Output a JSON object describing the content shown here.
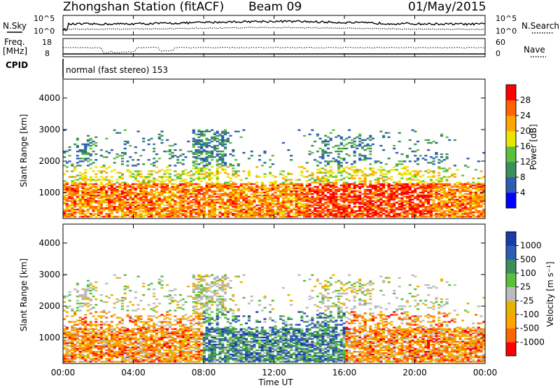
{
  "header": {
    "title": "Zhongshan Station (fitACF)",
    "beam": "Beam 09",
    "date": "01/May/2015",
    "cpid_label": "CPID",
    "cpid_text": "normal (fast stereo) 153"
  },
  "noise_panel": {
    "left_label": "N.Sky",
    "right_label": "N.Search",
    "left_ticks": [
      "10^5",
      "10^0"
    ],
    "right_ticks": [
      "10^5",
      "10^0"
    ]
  },
  "freq_panel": {
    "left_label_1": "Freq.",
    "left_label_2": "[MHz]",
    "right_label": "Nave",
    "left_ticks": [
      "18",
      "8"
    ],
    "right_ticks": [
      "60",
      "0"
    ]
  },
  "colors": {
    "power": [
      "#0000ff",
      "#2d5db4",
      "#3a8f5a",
      "#5cbf3c",
      "#e6e600",
      "#ffa500",
      "#ff6400",
      "#ff0000"
    ],
    "velocity": [
      "#ff0000",
      "#ff6400",
      "#ffa500",
      "#e6b400",
      "#bbbbbb",
      "#5cbf3c",
      "#3a8f5a",
      "#2d5db4",
      "#1a3ca8"
    ]
  },
  "chart_data": [
    {
      "type": "heatmap",
      "name": "Power",
      "ylabel": "Slant Range [km]",
      "ylim": [
        180,
        4600
      ],
      "yticks": [
        "1000",
        "2000",
        "3000",
        "4000"
      ],
      "xlim_hours": [
        0,
        24
      ],
      "colorbar_label": "Power [dB]",
      "colorbar_ticks": [
        "4",
        "8",
        "12",
        "16",
        "20",
        "24",
        "28"
      ],
      "colorbar_range": [
        0,
        32
      ]
    },
    {
      "type": "heatmap",
      "name": "Velocity",
      "ylabel": "Slant Range [km]",
      "ylim": [
        180,
        4600
      ],
      "yticks": [
        "1000",
        "2000",
        "3000",
        "4000"
      ],
      "xlim_hours": [
        0,
        24
      ],
      "xlabel": "Time UT",
      "xticks": [
        "00:00",
        "04:00",
        "08:00",
        "12:00",
        "16:00",
        "20:00",
        "00:00"
      ],
      "colorbar_label": "Velocity [m s⁻¹]",
      "colorbar_ticks": [
        "1000",
        "500",
        "100",
        "25",
        "-25",
        "-100",
        "-500",
        "-1000"
      ]
    }
  ]
}
